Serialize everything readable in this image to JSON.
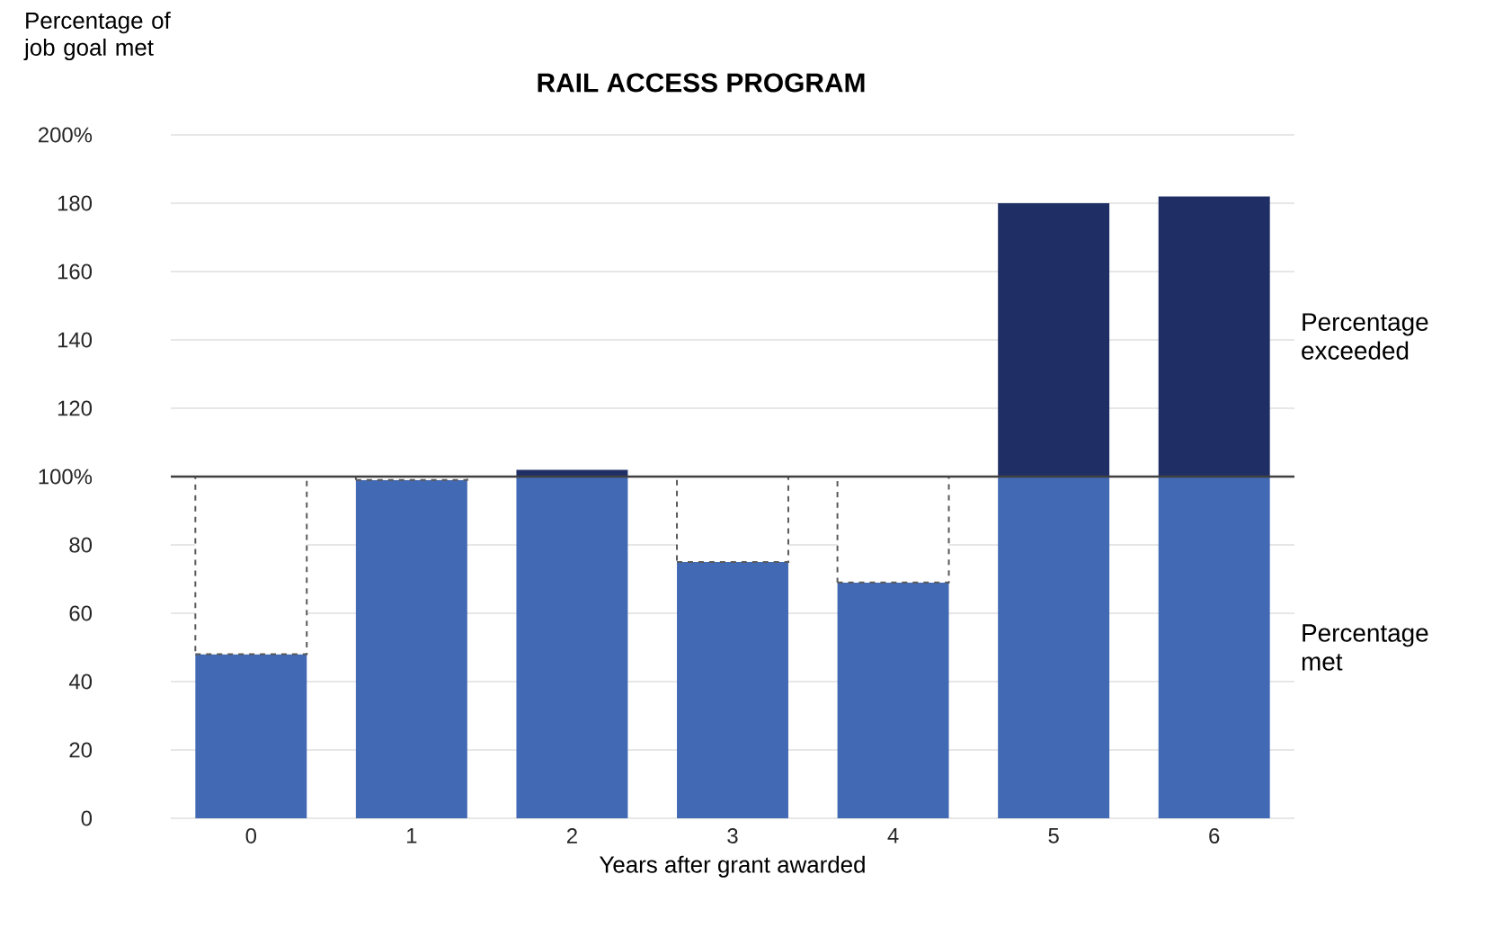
{
  "chart_data": {
    "type": "bar",
    "title": "RAIL ACCESS PROGRAM",
    "ylabel": "Percentage of job goal met",
    "xlabel": "Years after grant awarded",
    "categories": [
      "0",
      "1",
      "2",
      "3",
      "4",
      "5",
      "6"
    ],
    "stacked": true,
    "series": [
      {
        "name": "Percentage met",
        "color": "#4169b4",
        "values": [
          48,
          99,
          100,
          75,
          69,
          100,
          100
        ]
      },
      {
        "name": "Percentage exceeded",
        "color": "#1f2f66",
        "values": [
          0,
          0,
          2,
          0,
          0,
          80,
          82
        ]
      },
      {
        "color": "#ffffff",
        "line_style": "dashed",
        "values": [
          52,
          1,
          null,
          25,
          31,
          null,
          null
        ]
      }
    ],
    "ylim": [
      0,
      200
    ],
    "yticks": [
      0,
      20,
      40,
      60,
      80,
      {
        "value": 100,
        "label": "100%"
      },
      120,
      140,
      160,
      180,
      {
        "value": 200,
        "label": "200%"
      }
    ],
    "grid": "y",
    "ref_lines": [
      {
        "axis": "y",
        "value": 100,
        "color": "#404040"
      }
    ]
  }
}
